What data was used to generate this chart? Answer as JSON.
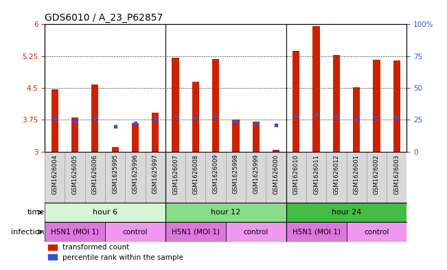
{
  "title": "GDS6010 / A_23_P62857",
  "samples": [
    "GSM1626004",
    "GSM1626005",
    "GSM1626006",
    "GSM1625995",
    "GSM1625996",
    "GSM1625997",
    "GSM1626007",
    "GSM1626008",
    "GSM1626009",
    "GSM1625998",
    "GSM1625999",
    "GSM1626000",
    "GSM1626010",
    "GSM1626011",
    "GSM1626012",
    "GSM1626001",
    "GSM1626002",
    "GSM1626003"
  ],
  "bar_values": [
    4.47,
    3.8,
    4.58,
    3.1,
    3.68,
    3.92,
    5.22,
    4.65,
    5.18,
    3.75,
    3.7,
    3.05,
    5.37,
    5.95,
    5.28,
    4.52,
    5.17,
    5.15
  ],
  "dot_values": [
    3.78,
    3.72,
    3.78,
    3.6,
    3.67,
    3.77,
    3.83,
    3.8,
    3.83,
    3.72,
    3.68,
    3.62,
    3.85,
    3.88,
    3.83,
    3.75,
    3.82,
    3.8
  ],
  "bar_color": "#cc2200",
  "dot_color": "#3355cc",
  "ylim": [
    3.0,
    6.0
  ],
  "yticks": [
    3.0,
    3.75,
    4.5,
    5.25,
    6.0
  ],
  "ytick_labels": [
    "3",
    "3.75",
    "4.5",
    "5.25",
    "6"
  ],
  "right_ytick_labels": [
    "0",
    "25",
    "50",
    "75",
    "100%"
  ],
  "hlines": [
    3.75,
    4.5,
    5.25
  ],
  "group_seps": [
    6,
    12
  ],
  "time_groups": [
    {
      "label": "hour 6",
      "start": 0,
      "end": 6,
      "color": "#d6f5d6"
    },
    {
      "label": "hour 12",
      "start": 6,
      "end": 12,
      "color": "#88dd88"
    },
    {
      "label": "hour 24",
      "start": 12,
      "end": 18,
      "color": "#44bb44"
    }
  ],
  "infection_groups": [
    {
      "label": "H5N1 (MOI 1)",
      "start": 0,
      "end": 3,
      "color": "#dd77dd"
    },
    {
      "label": "control",
      "start": 3,
      "end": 6,
      "color": "#ee99ee"
    },
    {
      "label": "H5N1 (MOI 1)",
      "start": 6,
      "end": 9,
      "color": "#dd77dd"
    },
    {
      "label": "control",
      "start": 9,
      "end": 12,
      "color": "#ee99ee"
    },
    {
      "label": "H5N1 (MOI 1)",
      "start": 12,
      "end": 15,
      "color": "#dd77dd"
    },
    {
      "label": "control",
      "start": 15,
      "end": 18,
      "color": "#ee99ee"
    }
  ],
  "legend_items": [
    {
      "label": "transformed count",
      "color": "#cc2200"
    },
    {
      "label": "percentile rank within the sample",
      "color": "#3355cc"
    }
  ],
  "bar_width": 0.35,
  "bar_bottom": 3.0,
  "axis_color_left": "#cc2200",
  "axis_color_right": "#3355cc",
  "label_fontsize": 8,
  "tick_fontsize": 7.5,
  "sample_fontsize": 6.2,
  "title_fontsize": 10,
  "row_label_fontsize": 8,
  "cell_label_fontsize": 8,
  "sample_bg_color": "#d8d8d8",
  "sample_sep_color": "#999999"
}
